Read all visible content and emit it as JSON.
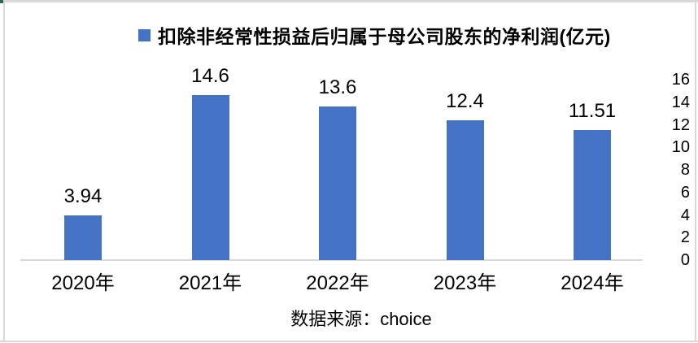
{
  "chart_data": {
    "type": "bar",
    "title": "扣除非经常性损益后归属于母公司股东的净利润(亿元)",
    "categories": [
      "2020年",
      "2021年",
      "2022年",
      "2023年",
      "2024年"
    ],
    "values": [
      3.94,
      14.6,
      13.6,
      12.4,
      11.51
    ],
    "value_labels": [
      "3.94",
      "14.6",
      "13.6",
      "12.4",
      "11.51"
    ],
    "xlabel": "",
    "ylabel": "",
    "ylim": [
      0,
      16
    ],
    "yticks": [
      "0",
      "2",
      "4",
      "6",
      "8",
      "10",
      "12",
      "14",
      "16"
    ],
    "y_axis_side": "right",
    "grid": false,
    "legend_position": "top",
    "colors": {
      "bar": "#4472C4",
      "legend_swatch": "#4472C4",
      "axis_line": "#D9D9D9",
      "text": "#000000"
    }
  },
  "footer": {
    "source": "数据来源：choice"
  }
}
